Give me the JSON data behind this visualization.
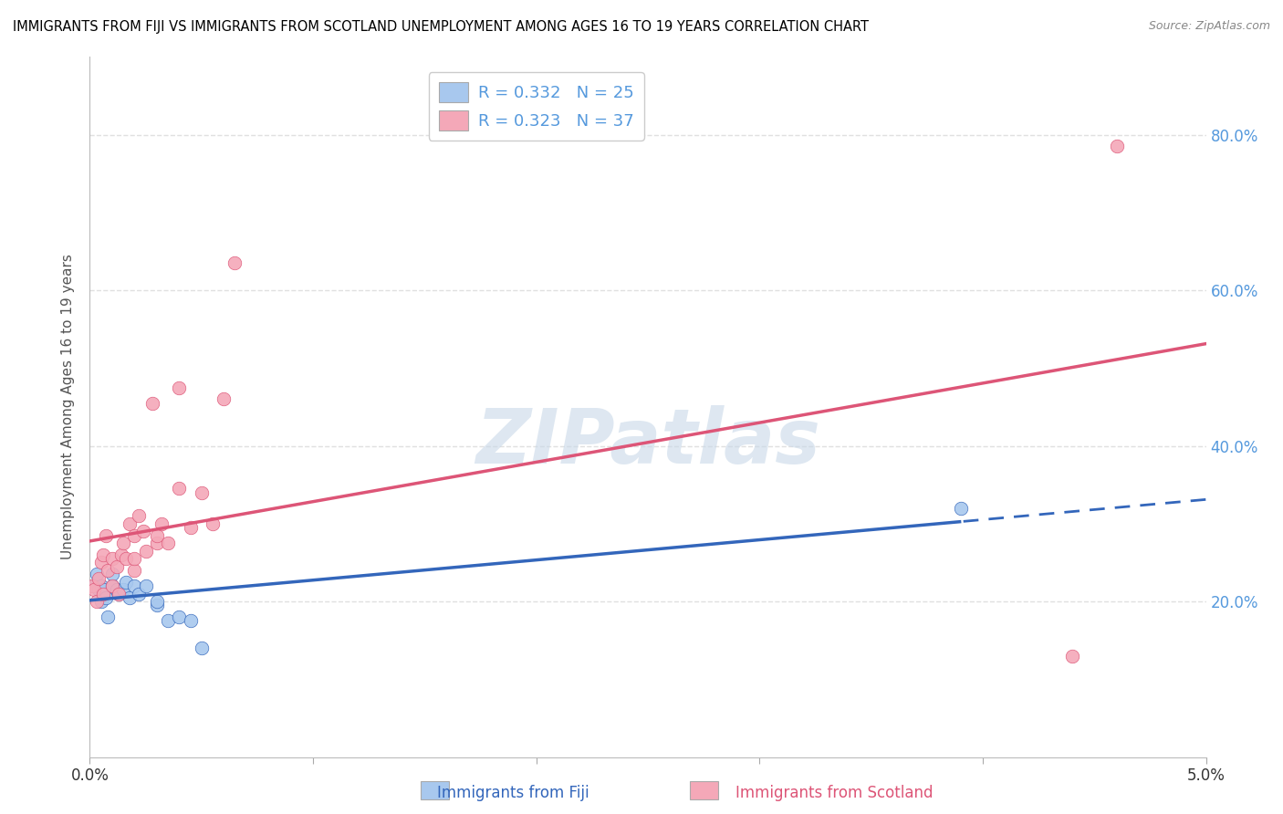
{
  "title": "IMMIGRANTS FROM FIJI VS IMMIGRANTS FROM SCOTLAND UNEMPLOYMENT AMONG AGES 16 TO 19 YEARS CORRELATION CHART",
  "source": "Source: ZipAtlas.com",
  "ylabel": "Unemployment Among Ages 16 to 19 years",
  "xlabel_fiji": "Immigrants from Fiji",
  "xlabel_scotland": "Immigrants from Scotland",
  "xlim": [
    0.0,
    0.05
  ],
  "ylim": [
    0.0,
    0.9
  ],
  "fiji_R": 0.332,
  "fiji_N": 25,
  "scotland_R": 0.323,
  "scotland_N": 37,
  "fiji_color": "#A8C8EE",
  "scotland_color": "#F4A8B8",
  "fiji_line_color": "#3366BB",
  "scotland_line_color": "#DD5577",
  "background_color": "#FFFFFF",
  "grid_color": "#E0E0E0",
  "ytick_color": "#5599DD",
  "xtick_labels": [
    "0.0%",
    "",
    "",
    "",
    "",
    "5.0%"
  ],
  "ytick_labels": [
    "20.0%",
    "40.0%",
    "60.0%",
    "80.0%"
  ],
  "fiji_x": [
    0.0002,
    0.0003,
    0.0004,
    0.0005,
    0.0005,
    0.0006,
    0.0007,
    0.0008,
    0.001,
    0.001,
    0.0012,
    0.0013,
    0.0015,
    0.0016,
    0.0018,
    0.002,
    0.0022,
    0.0025,
    0.003,
    0.003,
    0.0035,
    0.004,
    0.0045,
    0.005,
    0.039
  ],
  "fiji_y": [
    0.22,
    0.235,
    0.215,
    0.2,
    0.22,
    0.215,
    0.205,
    0.18,
    0.22,
    0.235,
    0.215,
    0.21,
    0.215,
    0.225,
    0.205,
    0.22,
    0.21,
    0.22,
    0.195,
    0.2,
    0.175,
    0.18,
    0.175,
    0.14,
    0.32
  ],
  "scotland_x": [
    0.0001,
    0.0002,
    0.0003,
    0.0004,
    0.0005,
    0.0006,
    0.0006,
    0.0007,
    0.0008,
    0.001,
    0.001,
    0.0012,
    0.0013,
    0.0014,
    0.0015,
    0.0016,
    0.0018,
    0.002,
    0.002,
    0.002,
    0.0022,
    0.0024,
    0.0025,
    0.0028,
    0.003,
    0.003,
    0.0032,
    0.0035,
    0.004,
    0.004,
    0.0045,
    0.005,
    0.0055,
    0.006,
    0.0065,
    0.044,
    0.046
  ],
  "scotland_y": [
    0.22,
    0.215,
    0.2,
    0.23,
    0.25,
    0.26,
    0.21,
    0.285,
    0.24,
    0.22,
    0.255,
    0.245,
    0.21,
    0.26,
    0.275,
    0.255,
    0.3,
    0.24,
    0.255,
    0.285,
    0.31,
    0.29,
    0.265,
    0.455,
    0.275,
    0.285,
    0.3,
    0.275,
    0.345,
    0.475,
    0.295,
    0.34,
    0.3,
    0.46,
    0.635,
    0.13,
    0.785
  ],
  "watermark_text": "ZIPatlas",
  "watermark_color": "#C8D8E8"
}
